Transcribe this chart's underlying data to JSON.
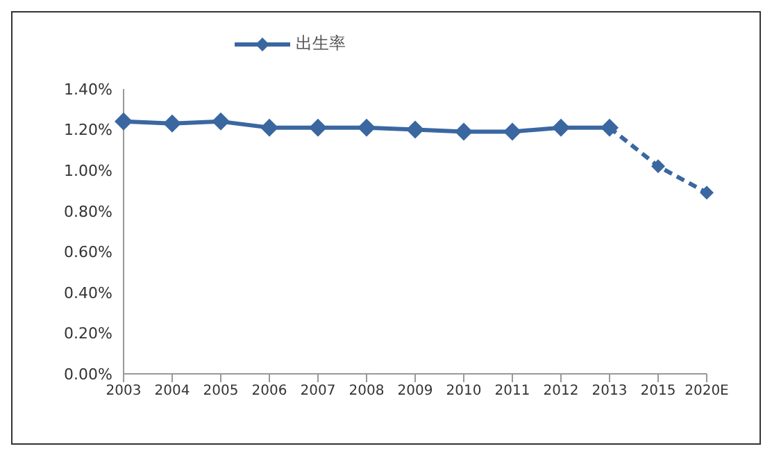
{
  "chart_data": {
    "type": "line",
    "categories": [
      "2003",
      "2004",
      "2005",
      "2006",
      "2007",
      "2008",
      "2009",
      "2010",
      "2011",
      "2012",
      "2013",
      "2015",
      "2020E"
    ],
    "series": [
      {
        "name": "出生率",
        "color": "#3a67a0",
        "values": [
          1.24,
          1.23,
          1.24,
          1.21,
          1.21,
          1.21,
          1.2,
          1.19,
          1.19,
          1.21,
          1.21,
          null,
          null
        ]
      },
      {
        "color": "#3a67a0",
        "line_style": "dashed",
        "values": [
          null,
          null,
          null,
          null,
          null,
          null,
          null,
          null,
          null,
          null,
          1.21,
          1.02,
          0.89
        ]
      }
    ],
    "ylim": [
      0,
      1.4
    ],
    "yticks": [
      {
        "value": 0,
        "label": "0.00%"
      },
      {
        "value": 0.2,
        "label": "0.20%"
      },
      {
        "value": 0.4,
        "label": "0.40%"
      },
      {
        "value": 0.6,
        "label": "0.60%"
      },
      {
        "value": 0.8,
        "label": "0.80%"
      },
      {
        "value": 1,
        "label": "1.00%"
      },
      {
        "value": 1.2,
        "label": "1.20%"
      },
      {
        "value": 1.4,
        "label": "1.40%"
      }
    ],
    "grid": false,
    "legend": "top",
    "marker": "diamond",
    "line_style": "solid"
  }
}
